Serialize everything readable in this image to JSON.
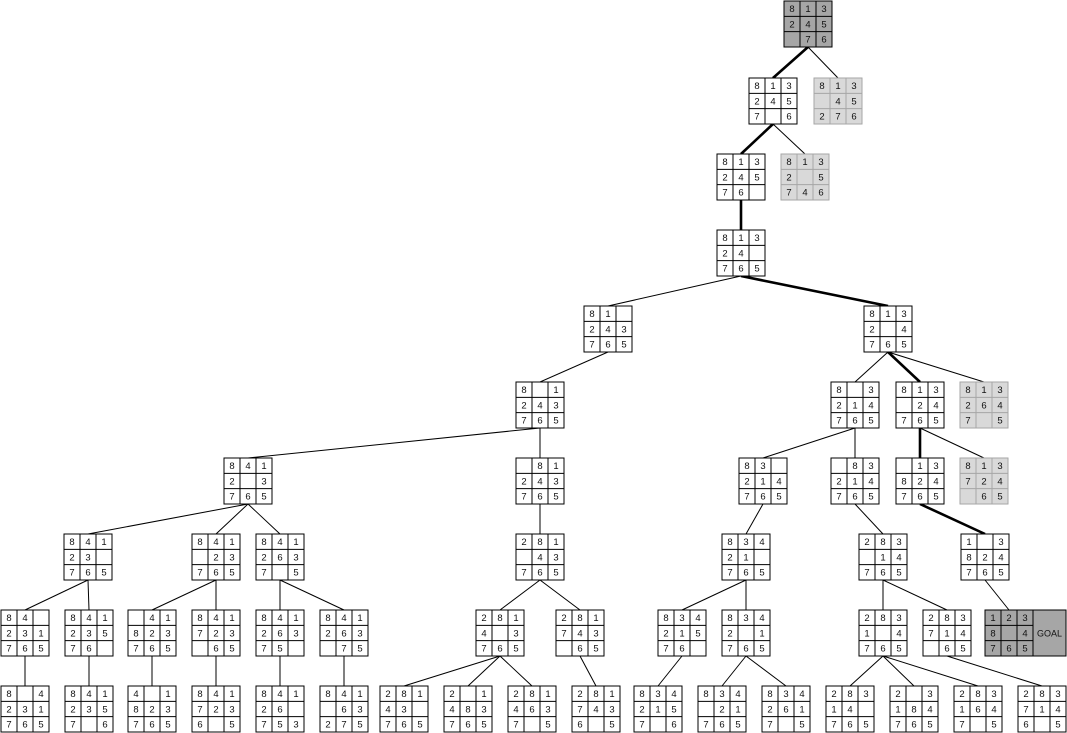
{
  "colors": {
    "edge": "#000000",
    "state_border": "#000000",
    "state_fill": "#ffffff",
    "pruned_fill": "#d9d9d9",
    "pruned_border": "#a6a6a6",
    "start_fill": "#a6a6a6",
    "goal_fill": "#a6a6a6"
  },
  "goal_label": "GOAL",
  "nodes": [
    {
      "id": "n0",
      "grid": [
        "8",
        "1",
        "3",
        "2",
        "4",
        "5",
        "",
        "7",
        "6"
      ],
      "style": "start"
    },
    {
      "id": "n1",
      "grid": [
        "8",
        "1",
        "3",
        "2",
        "4",
        "5",
        "7",
        "",
        "6"
      ],
      "style": "normal"
    },
    {
      "id": "n2",
      "grid": [
        "8",
        "1",
        "3",
        "",
        "4",
        "5",
        "2",
        "7",
        "6"
      ],
      "style": "pruned"
    },
    {
      "id": "n3",
      "grid": [
        "8",
        "1",
        "3",
        "2",
        "4",
        "5",
        "7",
        "6",
        ""
      ],
      "style": "normal"
    },
    {
      "id": "n4",
      "grid": [
        "8",
        "1",
        "3",
        "2",
        "",
        "5",
        "7",
        "4",
        "6"
      ],
      "style": "pruned"
    },
    {
      "id": "n5",
      "grid": [
        "8",
        "1",
        "3",
        "2",
        "4",
        "",
        "7",
        "6",
        "5"
      ],
      "style": "normal"
    },
    {
      "id": "n6",
      "grid": [
        "8",
        "1",
        "",
        "2",
        "4",
        "3",
        "7",
        "6",
        "5"
      ],
      "style": "normal"
    },
    {
      "id": "n7",
      "grid": [
        "8",
        "1",
        "3",
        "2",
        "",
        "4",
        "7",
        "6",
        "5"
      ],
      "style": "normal"
    },
    {
      "id": "n8",
      "grid": [
        "8",
        "",
        "1",
        "2",
        "4",
        "3",
        "7",
        "6",
        "5"
      ],
      "style": "normal"
    },
    {
      "id": "n9",
      "grid": [
        "8",
        "",
        "3",
        "2",
        "1",
        "4",
        "7",
        "6",
        "5"
      ],
      "style": "normal"
    },
    {
      "id": "n10",
      "grid": [
        "8",
        "1",
        "3",
        "",
        "2",
        "4",
        "7",
        "6",
        "5"
      ],
      "style": "normal"
    },
    {
      "id": "n11",
      "grid": [
        "8",
        "1",
        "3",
        "2",
        "6",
        "4",
        "7",
        "",
        "5"
      ],
      "style": "pruned"
    },
    {
      "id": "n12",
      "grid": [
        "8",
        "4",
        "1",
        "2",
        "",
        "3",
        "7",
        "6",
        "5"
      ],
      "style": "normal"
    },
    {
      "id": "n13",
      "grid": [
        "",
        "8",
        "1",
        "2",
        "4",
        "3",
        "7",
        "6",
        "5"
      ],
      "style": "normal"
    },
    {
      "id": "n14",
      "grid": [
        "8",
        "3",
        "",
        "2",
        "1",
        "4",
        "7",
        "6",
        "5"
      ],
      "style": "normal"
    },
    {
      "id": "n15",
      "grid": [
        "",
        "8",
        "3",
        "2",
        "1",
        "4",
        "7",
        "6",
        "5"
      ],
      "style": "normal"
    },
    {
      "id": "n16",
      "grid": [
        "",
        "1",
        "3",
        "8",
        "2",
        "4",
        "7",
        "6",
        "5"
      ],
      "style": "normal"
    },
    {
      "id": "n17",
      "grid": [
        "8",
        "1",
        "3",
        "7",
        "2",
        "4",
        "",
        "6",
        "5"
      ],
      "style": "pruned"
    },
    {
      "id": "n18",
      "grid": [
        "8",
        "4",
        "1",
        "2",
        "3",
        "",
        "7",
        "6",
        "5"
      ],
      "style": "normal"
    },
    {
      "id": "n19",
      "grid": [
        "8",
        "4",
        "1",
        "",
        "2",
        "3",
        "7",
        "6",
        "5"
      ],
      "style": "normal"
    },
    {
      "id": "n20",
      "grid": [
        "8",
        "4",
        "1",
        "2",
        "6",
        "3",
        "7",
        "",
        "5"
      ],
      "style": "normal"
    },
    {
      "id": "n21",
      "grid": [
        "2",
        "8",
        "1",
        "",
        "4",
        "3",
        "7",
        "6",
        "5"
      ],
      "style": "normal"
    },
    {
      "id": "n22",
      "grid": [
        "8",
        "3",
        "4",
        "2",
        "1",
        "",
        "7",
        "6",
        "5"
      ],
      "style": "normal"
    },
    {
      "id": "n23",
      "grid": [
        "2",
        "8",
        "3",
        "",
        "1",
        "4",
        "7",
        "6",
        "5"
      ],
      "style": "normal"
    },
    {
      "id": "n24",
      "grid": [
        "1",
        "",
        "3",
        "8",
        "2",
        "4",
        "7",
        "6",
        "5"
      ],
      "style": "normal"
    },
    {
      "id": "n25",
      "grid": [
        "8",
        "4",
        "",
        "2",
        "3",
        "1",
        "7",
        "6",
        "5"
      ],
      "style": "normal"
    },
    {
      "id": "n26",
      "grid": [
        "8",
        "4",
        "1",
        "2",
        "3",
        "5",
        "7",
        "6",
        ""
      ],
      "style": "normal"
    },
    {
      "id": "n27",
      "grid": [
        "",
        "4",
        "1",
        "8",
        "2",
        "3",
        "7",
        "6",
        "5"
      ],
      "style": "normal"
    },
    {
      "id": "n28",
      "grid": [
        "8",
        "4",
        "1",
        "7",
        "2",
        "3",
        "",
        "6",
        "5"
      ],
      "style": "normal"
    },
    {
      "id": "n29",
      "grid": [
        "8",
        "4",
        "1",
        "2",
        "6",
        "3",
        "7",
        "5",
        ""
      ],
      "style": "normal"
    },
    {
      "id": "n30",
      "grid": [
        "8",
        "4",
        "1",
        "2",
        "6",
        "3",
        "",
        "7",
        "5"
      ],
      "style": "normal"
    },
    {
      "id": "n31",
      "grid": [
        "2",
        "8",
        "1",
        "4",
        "",
        "3",
        "7",
        "6",
        "5"
      ],
      "style": "normal"
    },
    {
      "id": "n32",
      "grid": [
        "2",
        "8",
        "1",
        "7",
        "4",
        "3",
        "",
        "6",
        "5"
      ],
      "style": "normal"
    },
    {
      "id": "n33",
      "grid": [
        "8",
        "3",
        "4",
        "2",
        "1",
        "5",
        "7",
        "6",
        ""
      ],
      "style": "normal"
    },
    {
      "id": "n34",
      "grid": [
        "8",
        "3",
        "4",
        "2",
        "",
        "1",
        "7",
        "6",
        "5"
      ],
      "style": "normal"
    },
    {
      "id": "n35",
      "grid": [
        "2",
        "8",
        "3",
        "1",
        "",
        "4",
        "7",
        "6",
        "5"
      ],
      "style": "normal"
    },
    {
      "id": "n36",
      "grid": [
        "2",
        "8",
        "3",
        "7",
        "1",
        "4",
        "",
        "6",
        "5"
      ],
      "style": "normal"
    },
    {
      "id": "n37",
      "grid": [
        "1",
        "2",
        "3",
        "8",
        "",
        "4",
        "7",
        "6",
        "5"
      ],
      "style": "goal"
    },
    {
      "id": "n38",
      "grid": [
        "8",
        "",
        "4",
        "2",
        "3",
        "1",
        "7",
        "6",
        "5"
      ],
      "style": "normal"
    },
    {
      "id": "n39",
      "grid": [
        "8",
        "4",
        "1",
        "2",
        "3",
        "5",
        "7",
        "",
        "6"
      ],
      "style": "normal"
    },
    {
      "id": "n40",
      "grid": [
        "4",
        "",
        "1",
        "8",
        "2",
        "3",
        "7",
        "6",
        "5"
      ],
      "style": "normal"
    },
    {
      "id": "n41",
      "grid": [
        "8",
        "4",
        "1",
        "7",
        "2",
        "3",
        "6",
        "",
        "5"
      ],
      "style": "normal"
    },
    {
      "id": "n42",
      "grid": [
        "8",
        "4",
        "1",
        "2",
        "6",
        "",
        "7",
        "5",
        "3"
      ],
      "style": "normal"
    },
    {
      "id": "n43",
      "grid": [
        "8",
        "4",
        "1",
        "",
        "6",
        "3",
        "2",
        "7",
        "5"
      ],
      "style": "normal"
    },
    {
      "id": "n44",
      "grid": [
        "2",
        "8",
        "1",
        "4",
        "3",
        "",
        "7",
        "6",
        "5"
      ],
      "style": "normal"
    },
    {
      "id": "n45",
      "grid": [
        "2",
        "",
        "1",
        "4",
        "8",
        "3",
        "7",
        "6",
        "5"
      ],
      "style": "normal"
    },
    {
      "id": "n46",
      "grid": [
        "2",
        "8",
        "1",
        "4",
        "6",
        "3",
        "7",
        "",
        "5"
      ],
      "style": "normal"
    },
    {
      "id": "n47",
      "grid": [
        "2",
        "8",
        "1",
        "7",
        "4",
        "3",
        "6",
        "",
        "5"
      ],
      "style": "normal"
    },
    {
      "id": "n48",
      "grid": [
        "8",
        "3",
        "4",
        "2",
        "1",
        "5",
        "7",
        "",
        "6"
      ],
      "style": "normal"
    },
    {
      "id": "n49",
      "grid": [
        "8",
        "3",
        "4",
        "",
        "2",
        "1",
        "7",
        "6",
        "5"
      ],
      "style": "normal"
    },
    {
      "id": "n50",
      "grid": [
        "8",
        "3",
        "4",
        "2",
        "6",
        "1",
        "7",
        "",
        "5"
      ],
      "style": "normal"
    },
    {
      "id": "n51",
      "grid": [
        "2",
        "8",
        "3",
        "1",
        "4",
        "",
        "7",
        "6",
        "5"
      ],
      "style": "normal"
    },
    {
      "id": "n52",
      "grid": [
        "2",
        "",
        "3",
        "1",
        "8",
        "4",
        "7",
        "6",
        "5"
      ],
      "style": "normal"
    },
    {
      "id": "n53",
      "grid": [
        "2",
        "8",
        "3",
        "1",
        "6",
        "4",
        "7",
        "",
        "5"
      ],
      "style": "normal"
    },
    {
      "id": "n54",
      "grid": [
        "2",
        "8",
        "3",
        "7",
        "1",
        "4",
        "6",
        "",
        "5"
      ],
      "style": "normal"
    }
  ],
  "edges": [
    {
      "from": "n0",
      "to": "n1",
      "bold": true
    },
    {
      "from": "n0",
      "to": "n2",
      "bold": false
    },
    {
      "from": "n1",
      "to": "n3",
      "bold": true
    },
    {
      "from": "n1",
      "to": "n4",
      "bold": false
    },
    {
      "from": "n3",
      "to": "n5",
      "bold": true
    },
    {
      "from": "n5",
      "to": "n6",
      "bold": false
    },
    {
      "from": "n5",
      "to": "n7",
      "bold": true
    },
    {
      "from": "n6",
      "to": "n8",
      "bold": false
    },
    {
      "from": "n7",
      "to": "n9",
      "bold": false
    },
    {
      "from": "n7",
      "to": "n10",
      "bold": true
    },
    {
      "from": "n7",
      "to": "n11",
      "bold": false
    },
    {
      "from": "n8",
      "to": "n12",
      "bold": false
    },
    {
      "from": "n8",
      "to": "n13",
      "bold": false
    },
    {
      "from": "n9",
      "to": "n14",
      "bold": false
    },
    {
      "from": "n9",
      "to": "n15",
      "bold": false
    },
    {
      "from": "n10",
      "to": "n16",
      "bold": true
    },
    {
      "from": "n10",
      "to": "n17",
      "bold": false
    },
    {
      "from": "n12",
      "to": "n18",
      "bold": false
    },
    {
      "from": "n12",
      "to": "n19",
      "bold": false
    },
    {
      "from": "n12",
      "to": "n20",
      "bold": false
    },
    {
      "from": "n13",
      "to": "n21",
      "bold": false
    },
    {
      "from": "n14",
      "to": "n22",
      "bold": false
    },
    {
      "from": "n15",
      "to": "n23",
      "bold": false
    },
    {
      "from": "n16",
      "to": "n24",
      "bold": true
    },
    {
      "from": "n18",
      "to": "n25",
      "bold": false
    },
    {
      "from": "n18",
      "to": "n26",
      "bold": false
    },
    {
      "from": "n19",
      "to": "n27",
      "bold": false
    },
    {
      "from": "n19",
      "to": "n28",
      "bold": false
    },
    {
      "from": "n20",
      "to": "n29",
      "bold": false
    },
    {
      "from": "n20",
      "to": "n30",
      "bold": false
    },
    {
      "from": "n21",
      "to": "n31",
      "bold": false
    },
    {
      "from": "n21",
      "to": "n32",
      "bold": false
    },
    {
      "from": "n22",
      "to": "n33",
      "bold": false
    },
    {
      "from": "n22",
      "to": "n34",
      "bold": false
    },
    {
      "from": "n23",
      "to": "n35",
      "bold": false
    },
    {
      "from": "n23",
      "to": "n36",
      "bold": false
    },
    {
      "from": "n24",
      "to": "n37",
      "bold": false
    },
    {
      "from": "n25",
      "to": "n38",
      "bold": false
    },
    {
      "from": "n26",
      "to": "n39",
      "bold": false
    },
    {
      "from": "n27",
      "to": "n40",
      "bold": false
    },
    {
      "from": "n28",
      "to": "n41",
      "bold": false
    },
    {
      "from": "n29",
      "to": "n42",
      "bold": false
    },
    {
      "from": "n30",
      "to": "n43",
      "bold": false
    },
    {
      "from": "n31",
      "to": "n44",
      "bold": false
    },
    {
      "from": "n31",
      "to": "n45",
      "bold": false
    },
    {
      "from": "n31",
      "to": "n46",
      "bold": false
    },
    {
      "from": "n32",
      "to": "n47",
      "bold": false
    },
    {
      "from": "n33",
      "to": "n48",
      "bold": false
    },
    {
      "from": "n34",
      "to": "n49",
      "bold": false
    },
    {
      "from": "n34",
      "to": "n50",
      "bold": false
    },
    {
      "from": "n35",
      "to": "n51",
      "bold": false
    },
    {
      "from": "n35",
      "to": "n52",
      "bold": false
    },
    {
      "from": "n35",
      "to": "n53",
      "bold": false
    },
    {
      "from": "n36",
      "to": "n54",
      "bold": false
    }
  ]
}
